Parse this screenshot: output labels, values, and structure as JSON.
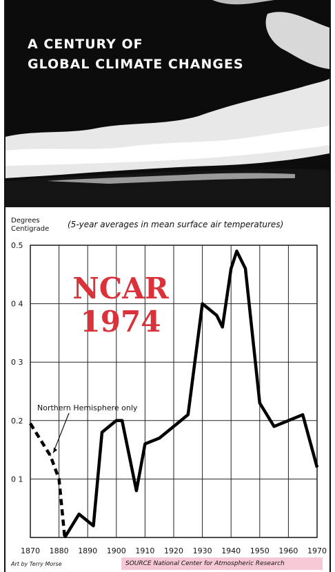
{
  "banner": {
    "title": "A CENTURY OF\nGLOBAL CLIMATE CHANGES"
  },
  "units_label": "Degrees\nCentigrade",
  "subtitle": "(5-year averages in mean surface air temperatures)",
  "stamp": "NCAR\n1974",
  "credit": "Art by Terry Morse",
  "source": "SOURCE National Center for Atmospheric Research",
  "colors": {
    "stamp": "#d9323a",
    "source_highlight": "#f6c8d6",
    "line": "#000000"
  },
  "chart_data": {
    "type": "line",
    "title": "",
    "xlabel": "",
    "ylabel": "Degrees Centigrade",
    "xlim": [
      1870,
      1970
    ],
    "ylim": [
      0,
      0.5
    ],
    "grid": true,
    "x_ticks": [
      1870,
      1880,
      1890,
      1900,
      1910,
      1920,
      1930,
      1940,
      1950,
      1960,
      1970
    ],
    "y_ticks": [
      {
        "value": 0.1,
        "label": "0 1"
      },
      {
        "value": 0.2,
        "label": "0.2"
      },
      {
        "value": 0.3,
        "label": "0 3"
      },
      {
        "value": 0.4,
        "label": "0 4"
      },
      {
        "value": 0.5,
        "label": "0.5"
      }
    ],
    "series": [
      {
        "style": "dashed",
        "x": [
          1870,
          1877,
          1880,
          1882
        ],
        "y": [
          0.195,
          0.14,
          0.1,
          0.0
        ]
      },
      {
        "style": "solid",
        "x": [
          1882,
          1887,
          1892,
          1895,
          1900,
          1902,
          1907,
          1910,
          1915,
          1920,
          1925,
          1930,
          1935,
          1937,
          1940,
          1942,
          1945,
          1950,
          1955,
          1960,
          1965,
          1970
        ],
        "y": [
          0.0,
          0.04,
          0.02,
          0.18,
          0.2,
          0.2,
          0.08,
          0.16,
          0.17,
          0.19,
          0.21,
          0.4,
          0.38,
          0.36,
          0.46,
          0.49,
          0.46,
          0.23,
          0.19,
          0.2,
          0.21,
          0.12
        ]
      }
    ],
    "annotations": [
      {
        "text": "Northern Hemisphere only",
        "x": 1877,
        "y": 0.14
      }
    ]
  }
}
